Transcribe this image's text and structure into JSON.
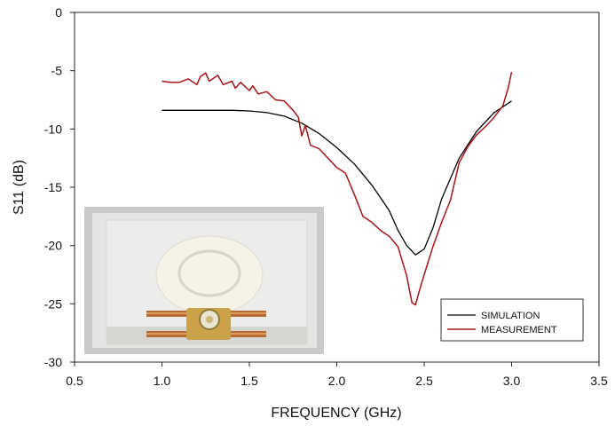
{
  "chart_data": {
    "type": "line",
    "title": "",
    "xlabel": "FREQUENCY (GHz)",
    "ylabel": "S11 (dB)",
    "xlim": [
      0.5,
      3.5
    ],
    "ylim": [
      -30,
      0
    ],
    "xticks": [
      0.5,
      1.0,
      1.5,
      2.0,
      2.5,
      3.0,
      3.5
    ],
    "xtick_labels": [
      "0.5",
      "1.0",
      "1.5",
      "2.0",
      "2.5",
      "3.0",
      "3.5"
    ],
    "yticks": [
      0,
      -5,
      -10,
      -15,
      -20,
      -25,
      -30
    ],
    "ytick_labels": [
      "0",
      "-5",
      "-10",
      "-15",
      "-20",
      "-25",
      "-30"
    ],
    "grid": false,
    "legend_position": "bottom-right",
    "series": [
      {
        "name": "SIMULATION",
        "color": "#000000",
        "x": [
          1.0,
          1.2,
          1.4,
          1.5,
          1.6,
          1.7,
          1.8,
          1.9,
          2.0,
          2.1,
          2.2,
          2.3,
          2.35,
          2.4,
          2.45,
          2.5,
          2.55,
          2.6,
          2.7,
          2.8,
          2.9,
          3.0
        ],
        "y": [
          -8.4,
          -8.4,
          -8.4,
          -8.45,
          -8.6,
          -8.9,
          -9.5,
          -10.4,
          -11.6,
          -13.0,
          -14.8,
          -17.0,
          -18.7,
          -20.0,
          -20.8,
          -20.3,
          -18.5,
          -16.0,
          -12.5,
          -10.2,
          -8.6,
          -7.6
        ]
      },
      {
        "name": "MEASUREMENT",
        "color": "#a4161a",
        "x": [
          1.0,
          1.05,
          1.1,
          1.15,
          1.2,
          1.22,
          1.25,
          1.27,
          1.3,
          1.32,
          1.35,
          1.4,
          1.42,
          1.45,
          1.5,
          1.52,
          1.55,
          1.6,
          1.65,
          1.7,
          1.75,
          1.78,
          1.8,
          1.82,
          1.85,
          1.9,
          1.95,
          2.0,
          2.05,
          2.1,
          2.15,
          2.2,
          2.25,
          2.3,
          2.35,
          2.4,
          2.43,
          2.45,
          2.47,
          2.5,
          2.55,
          2.6,
          2.65,
          2.7,
          2.75,
          2.8,
          2.85,
          2.9,
          2.95,
          2.98,
          3.0
        ],
        "y": [
          -5.9,
          -6.0,
          -6.0,
          -5.7,
          -6.2,
          -5.5,
          -5.2,
          -5.9,
          -5.6,
          -5.4,
          -6.2,
          -5.9,
          -6.5,
          -6.0,
          -6.7,
          -6.3,
          -7.0,
          -6.8,
          -7.5,
          -7.6,
          -8.4,
          -9.0,
          -10.6,
          -9.7,
          -11.4,
          -11.7,
          -12.5,
          -13.3,
          -13.8,
          -15.6,
          -17.5,
          -18.0,
          -18.7,
          -19.2,
          -20.1,
          -22.6,
          -24.9,
          -25.1,
          -24.0,
          -22.5,
          -20.1,
          -18.0,
          -16.1,
          -12.9,
          -11.5,
          -10.5,
          -9.8,
          -9.0,
          -8.0,
          -6.5,
          -5.1
        ]
      }
    ]
  },
  "inset_photo": {
    "description_icon": "antenna-photo",
    "colors": {
      "board": "#e8e8e6",
      "copper": "#b76a34",
      "disc": "#f4f1e6",
      "frame": "#c9c9c7"
    }
  }
}
